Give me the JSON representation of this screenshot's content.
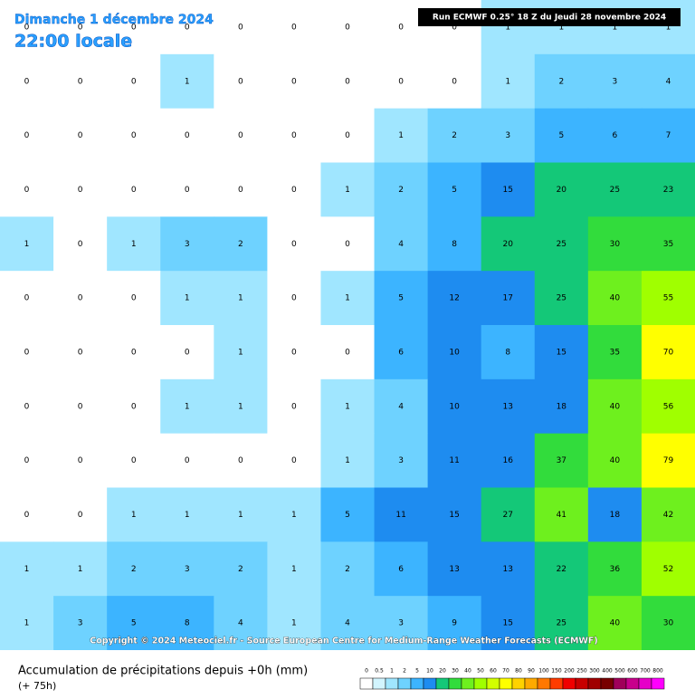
{
  "header": {
    "date": "Dimanche 1 décembre 2024",
    "time": "22:00 locale",
    "run": "Run ECMWF 0.25° 18 Z du Jeudi 28 novembre 2024"
  },
  "copyright": "Copyright © 2024 Meteociel.fr - Source European Centre for Medium-Range Weather Forecasts (ECMWF)",
  "map": {
    "values": [
      [
        0,
        0,
        0,
        0,
        0,
        0,
        0,
        0,
        0,
        1,
        1,
        1,
        1
      ],
      [
        0,
        0,
        0,
        1,
        0,
        0,
        0,
        0,
        0,
        1,
        2,
        3,
        4
      ],
      [
        0,
        0,
        0,
        0,
        0,
        0,
        0,
        1,
        2,
        3,
        5,
        6,
        7
      ],
      [
        0,
        0,
        0,
        0,
        0,
        0,
        1,
        2,
        5,
        15,
        20,
        25,
        23
      ],
      [
        1,
        0,
        1,
        3,
        2,
        0,
        0,
        4,
        8,
        20,
        25,
        30,
        35
      ],
      [
        0,
        0,
        0,
        1,
        1,
        0,
        1,
        5,
        12,
        17,
        25,
        40,
        55
      ],
      [
        0,
        0,
        0,
        0,
        1,
        0,
        0,
        6,
        10,
        8,
        15,
        35,
        70
      ],
      [
        0,
        0,
        0,
        1,
        1,
        0,
        1,
        4,
        10,
        13,
        18,
        40,
        56
      ],
      [
        0,
        0,
        0,
        0,
        0,
        0,
        1,
        3,
        11,
        16,
        37,
        40,
        79
      ],
      [
        0,
        0,
        1,
        1,
        1,
        1,
        5,
        11,
        15,
        27,
        41,
        18,
        42
      ],
      [
        1,
        1,
        2,
        3,
        2,
        1,
        2,
        6,
        13,
        13,
        22,
        36,
        52
      ],
      [
        1,
        3,
        5,
        8,
        4,
        1,
        4,
        3,
        9,
        15,
        25,
        40,
        30
      ]
    ]
  },
  "legend": {
    "title": "Accumulation de précipitations depuis +0h (mm)",
    "note": "(+ 75h)",
    "thresholds": [
      0,
      0.5,
      1,
      2,
      5,
      10,
      20,
      30,
      40,
      50,
      60,
      70,
      80,
      90,
      100,
      150,
      200,
      250,
      300,
      400,
      500,
      600,
      700,
      800
    ],
    "colors": [
      "#ffffff",
      "#d2f5ff",
      "#a0e6ff",
      "#6ed2ff",
      "#3cb4ff",
      "#1e8cf0",
      "#14c878",
      "#32dc3c",
      "#6ef01e",
      "#a0ff00",
      "#d2ff00",
      "#ffff00",
      "#ffd200",
      "#ffaa00",
      "#ff7800",
      "#ff3c00",
      "#f00000",
      "#c80000",
      "#a00000",
      "#780000",
      "#a0005a",
      "#c8008c",
      "#e600c8",
      "#ff00ff"
    ]
  }
}
